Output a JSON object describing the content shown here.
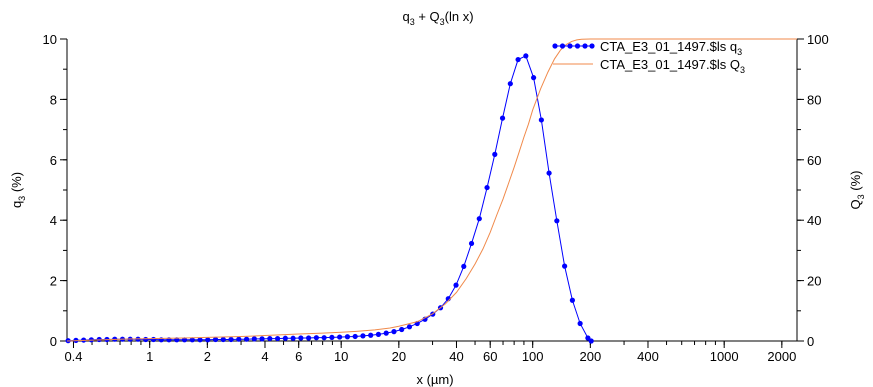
{
  "chart_data": {
    "type": "line",
    "title_main": "q",
    "title_sub1": "3",
    "title_mid": " + Q",
    "title_sub2": "3",
    "title_end": "(ln x)",
    "xlabel": "x (µm)",
    "ylabel_left_main": "q",
    "ylabel_left_sub": "3",
    "ylabel_left_end": " (%)",
    "ylabel_right_main": "Q",
    "ylabel_right_sub": "3",
    "ylabel_right_end": " (%)",
    "x_scale": "log",
    "xlim": [
      0.37,
      2400
    ],
    "ylim_left": [
      0,
      10
    ],
    "ylim_right": [
      0,
      100
    ],
    "x_ticks": [
      {
        "value": 0.4,
        "label": "0.4"
      },
      {
        "value": 1,
        "label": "1"
      },
      {
        "value": 2,
        "label": "2"
      },
      {
        "value": 4,
        "label": "4"
      },
      {
        "value": 6,
        "label": "6"
      },
      {
        "value": 10,
        "label": "10"
      },
      {
        "value": 20,
        "label": "20"
      },
      {
        "value": 40,
        "label": "40"
      },
      {
        "value": 60,
        "label": "60"
      },
      {
        "value": 100,
        "label": "100"
      },
      {
        "value": 200,
        "label": "200"
      },
      {
        "value": 400,
        "label": "400"
      },
      {
        "value": 1000,
        "label": "1000"
      },
      {
        "value": 2000,
        "label": "2000"
      }
    ],
    "y_left_ticks": [
      {
        "value": 0,
        "label": "0"
      },
      {
        "value": 2,
        "label": "2"
      },
      {
        "value": 4,
        "label": "4"
      },
      {
        "value": 6,
        "label": "6"
      },
      {
        "value": 8,
        "label": "8"
      },
      {
        "value": 10,
        "label": "10"
      }
    ],
    "y_right_ticks": [
      {
        "value": 0,
        "label": "0"
      },
      {
        "value": 20,
        "label": "20"
      },
      {
        "value": 40,
        "label": "40"
      },
      {
        "value": 60,
        "label": "60"
      },
      {
        "value": 80,
        "label": "80"
      },
      {
        "value": 100,
        "label": "100"
      }
    ],
    "legend_placement": "top-right",
    "series": [
      {
        "name_main": "CTA_E3_01_1497.$ls q",
        "name_sub": "3",
        "axis": "left",
        "color": "#0000ff",
        "style": "line-markers",
        "x": [
          0.375,
          0.412,
          0.452,
          0.496,
          0.545,
          0.598,
          0.657,
          0.721,
          0.791,
          0.869,
          0.953,
          1.047,
          1.149,
          1.261,
          1.385,
          1.52,
          1.669,
          1.832,
          2.01,
          2.207,
          2.423,
          2.66,
          2.92,
          3.205,
          3.518,
          3.862,
          4.24,
          4.654,
          5.109,
          5.609,
          6.157,
          6.759,
          7.42,
          8.145,
          8.942,
          9.816,
          10.78,
          11.83,
          12.99,
          14.26,
          15.65,
          17.18,
          18.86,
          20.7,
          22.73,
          24.95,
          27.39,
          30.07,
          33.01,
          36.24,
          39.78,
          43.67,
          47.94,
          52.62,
          57.77,
          63.41,
          69.61,
          76.42,
          83.89,
          92.09,
          101.1,
          111.0,
          121.8,
          133.7,
          146.8,
          161.2,
          176.9,
          194.2,
          202.1
        ],
        "y": [
          0.01,
          0.02,
          0.03,
          0.04,
          0.05,
          0.05,
          0.06,
          0.06,
          0.06,
          0.06,
          0.05,
          0.05,
          0.04,
          0.04,
          0.04,
          0.04,
          0.04,
          0.04,
          0.04,
          0.05,
          0.05,
          0.05,
          0.06,
          0.06,
          0.07,
          0.07,
          0.08,
          0.08,
          0.09,
          0.09,
          0.1,
          0.1,
          0.11,
          0.11,
          0.12,
          0.13,
          0.14,
          0.15,
          0.17,
          0.19,
          0.22,
          0.26,
          0.31,
          0.38,
          0.47,
          0.58,
          0.72,
          0.89,
          1.1,
          1.4,
          1.85,
          2.47,
          3.23,
          4.05,
          5.08,
          6.18,
          7.38,
          8.52,
          9.32,
          9.44,
          8.72,
          7.32,
          5.56,
          3.98,
          2.48,
          1.35,
          0.58,
          0.1,
          0.0
        ]
      },
      {
        "name_main": "CTA_E3_01_1497.$ls Q",
        "name_sub": "3",
        "axis": "right",
        "color": "#f08a4b",
        "style": "line",
        "x": [
          0.37,
          0.5,
          0.7,
          1,
          1.5,
          2,
          3,
          4,
          6,
          8,
          10,
          12,
          15,
          18,
          20,
          25,
          30,
          35,
          40,
          45,
          50,
          55,
          60,
          65,
          70,
          75,
          80,
          85,
          90,
          95,
          100,
          110,
          120,
          130,
          140,
          150,
          160,
          170,
          180,
          200,
          250,
          300,
          500,
          1000,
          2000,
          2400
        ],
        "y": [
          0.0,
          0.3,
          0.6,
          0.8,
          1.0,
          1.2,
          1.5,
          1.8,
          2.3,
          2.6,
          2.9,
          3.2,
          3.7,
          4.3,
          4.9,
          6.4,
          9.0,
          12.3,
          16.1,
          20.7,
          25.5,
          30.5,
          36.0,
          41.8,
          47.0,
          52.4,
          57.5,
          62.6,
          67.5,
          71.8,
          76.5,
          83.5,
          89.0,
          93.4,
          96.4,
          98.2,
          99.2,
          99.7,
          99.9,
          100.0,
          100.0,
          100.0,
          100.0,
          100.0,
          100.0,
          100.0
        ]
      }
    ]
  }
}
